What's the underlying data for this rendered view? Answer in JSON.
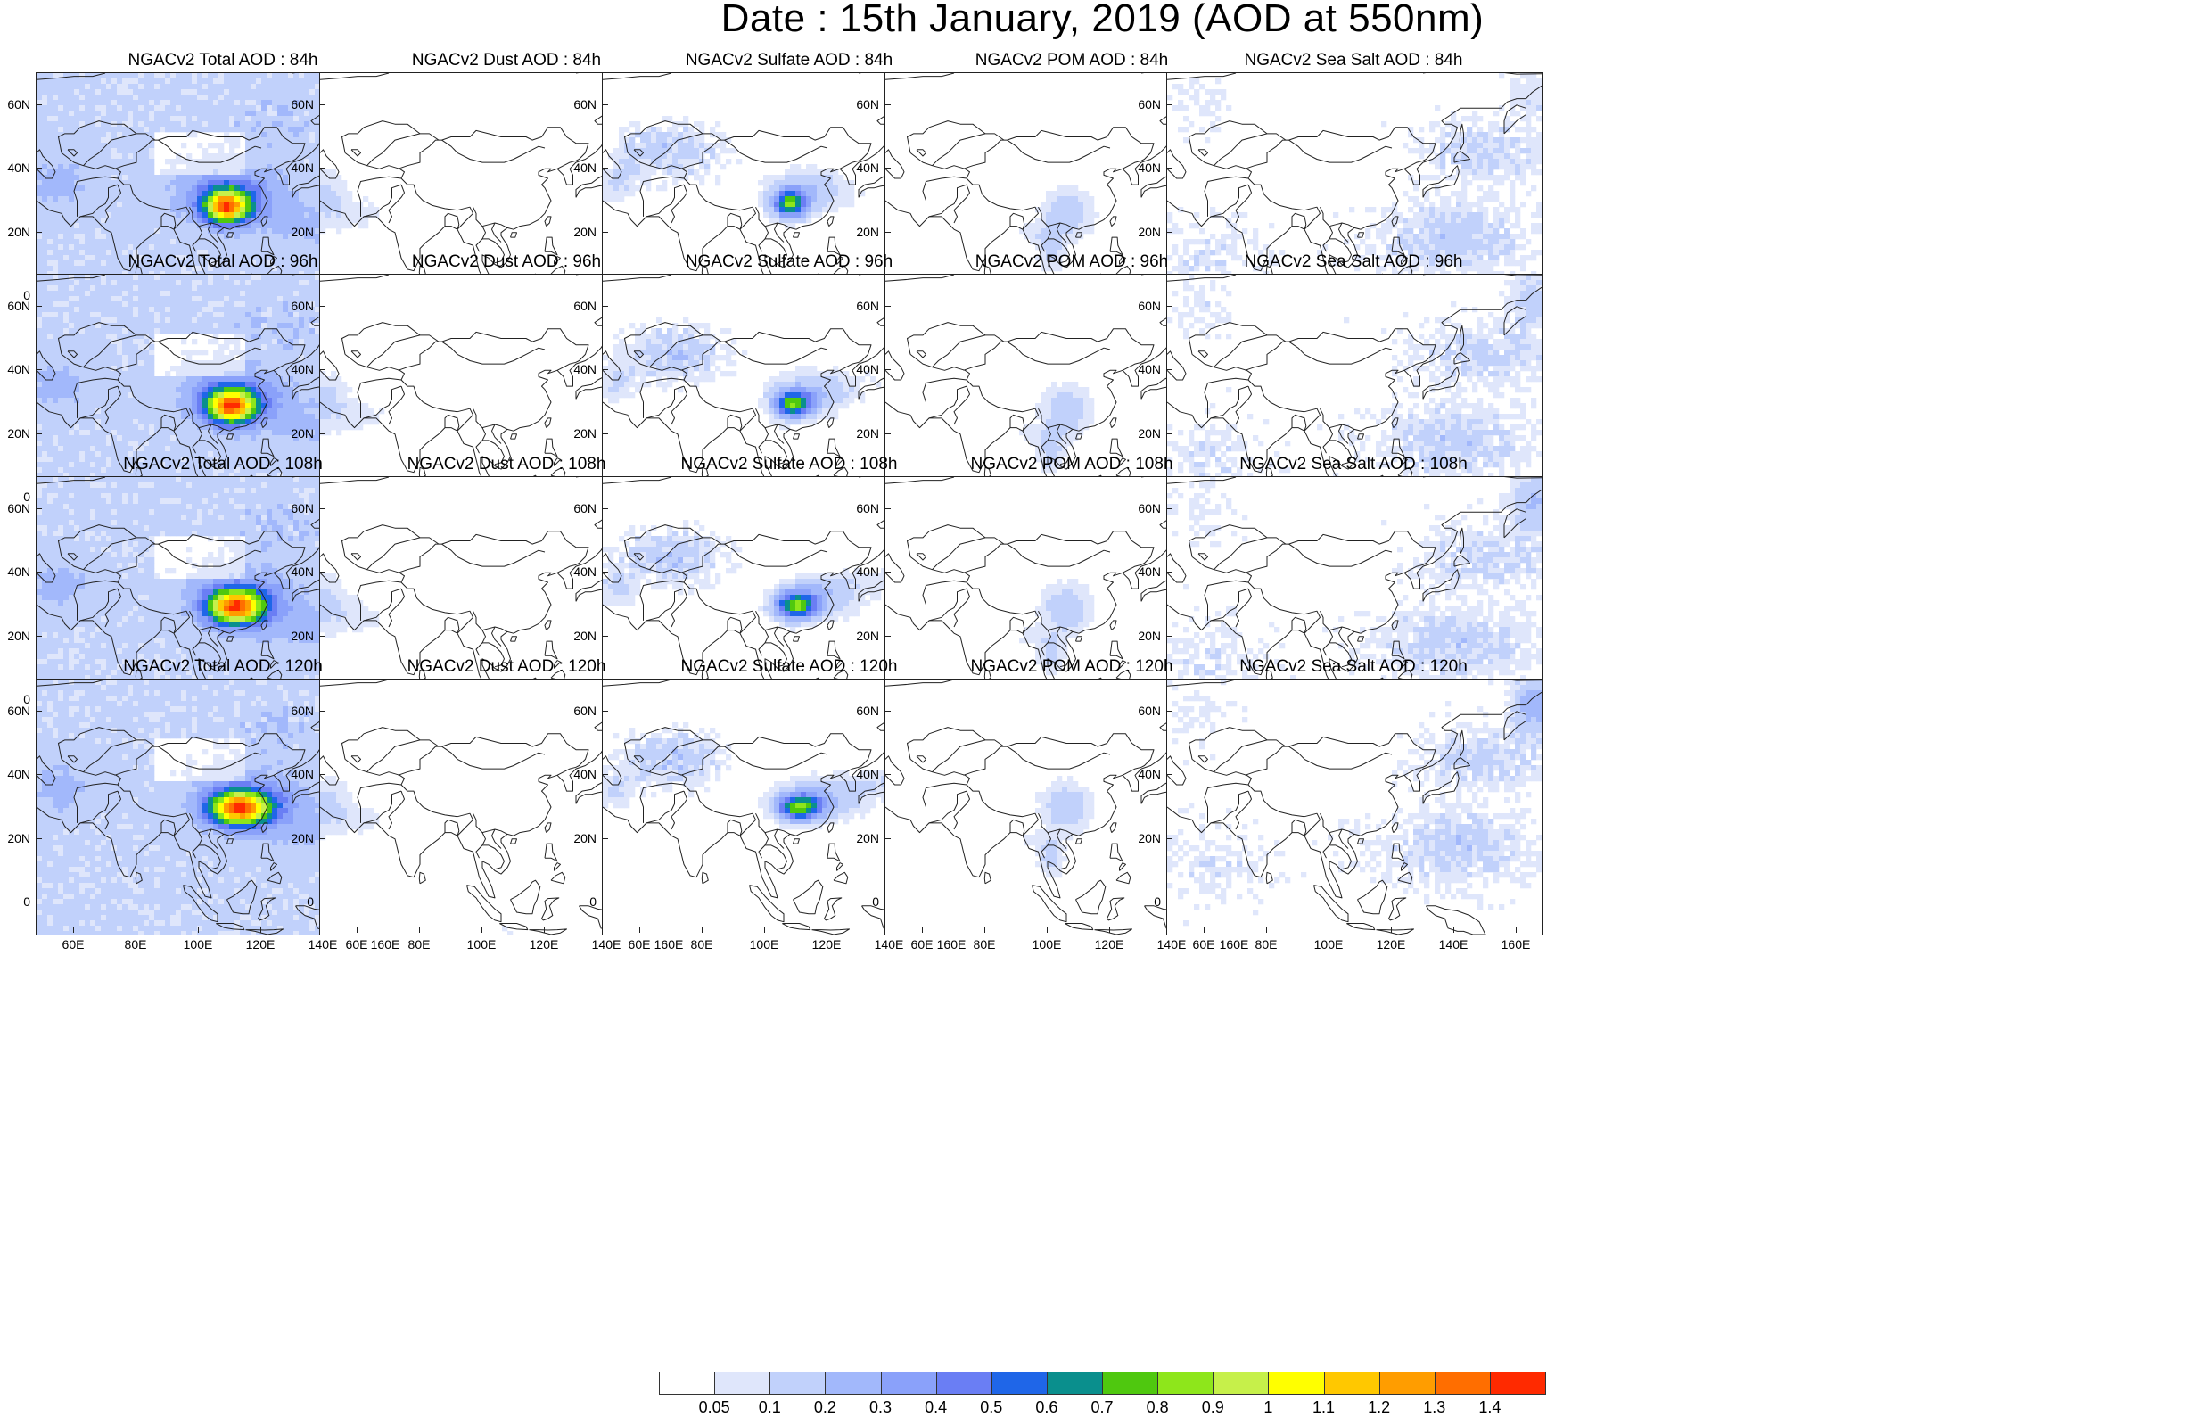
{
  "title": "Date : 15th January, 2019 (AOD at 550nm)",
  "colors": {
    "levels": [
      "#ffffff",
      "#dfe6fb",
      "#c1d1fb",
      "#a2b8fb",
      "#8aa1fa",
      "#6a7ef4",
      "#1f66e8",
      "#0a8f8d",
      "#4fc80f",
      "#8ee61b",
      "#c6f04a",
      "#ffff00",
      "#ffc800",
      "#ff9d00",
      "#ff6e00",
      "#ff2a00"
    ],
    "coastline": "#222222"
  },
  "axes": {
    "lat_ticks": [
      "60N",
      "40N",
      "20N",
      "0"
    ],
    "lon_ticks": [
      "60E",
      "80E",
      "100E",
      "120E",
      "140E",
      "160E"
    ]
  },
  "panels": [
    {
      "title": "NGACv2 Total AOD : 84h",
      "species": "total",
      "hour": 84
    },
    {
      "title": "NGACv2 Dust AOD : 84h",
      "species": "dust",
      "hour": 84
    },
    {
      "title": "NGACv2 Sulfate AOD : 84h",
      "species": "sulfate",
      "hour": 84
    },
    {
      "title": "NGACv2 POM AOD : 84h",
      "species": "pom",
      "hour": 84
    },
    {
      "title": "NGACv2 Sea Salt AOD : 84h",
      "species": "seasalt",
      "hour": 84
    },
    {
      "title": "NGACv2 Total AOD : 96h",
      "species": "total",
      "hour": 96
    },
    {
      "title": "NGACv2 Dust AOD : 96h",
      "species": "dust",
      "hour": 96
    },
    {
      "title": "NGACv2 Sulfate AOD : 96h",
      "species": "sulfate",
      "hour": 96
    },
    {
      "title": "NGACv2 POM AOD : 96h",
      "species": "pom",
      "hour": 96
    },
    {
      "title": "NGACv2 Sea Salt AOD : 96h",
      "species": "seasalt",
      "hour": 96
    },
    {
      "title": "NGACv2 Total AOD : 108h",
      "species": "total",
      "hour": 108
    },
    {
      "title": "NGACv2 Dust AOD : 108h",
      "species": "dust",
      "hour": 108
    },
    {
      "title": "NGACv2 Sulfate AOD : 108h",
      "species": "sulfate",
      "hour": 108
    },
    {
      "title": "NGACv2 POM AOD : 108h",
      "species": "pom",
      "hour": 108
    },
    {
      "title": "NGACv2 Sea Salt AOD : 108h",
      "species": "seasalt",
      "hour": 108
    },
    {
      "title": "NGACv2 Total AOD : 120h",
      "species": "total",
      "hour": 120
    },
    {
      "title": "NGACv2 Dust AOD : 120h",
      "species": "dust",
      "hour": 120
    },
    {
      "title": "NGACv2 Sulfate AOD : 120h",
      "species": "sulfate",
      "hour": 120
    },
    {
      "title": "NGACv2 POM AOD : 120h",
      "species": "pom",
      "hour": 120
    },
    {
      "title": "NGACv2 Sea Salt  AOD : 120h",
      "species": "seasalt",
      "hour": 120
    }
  ],
  "colorbar": {
    "labels": [
      "0.05",
      "0.1",
      "0.2",
      "0.3",
      "0.4",
      "0.5",
      "0.6",
      "0.7",
      "0.8",
      "0.9",
      "1",
      "1.1",
      "1.2",
      "1.3",
      "1.4"
    ]
  }
}
